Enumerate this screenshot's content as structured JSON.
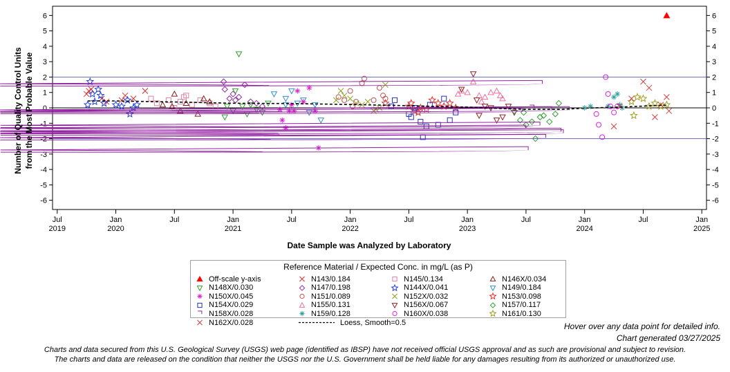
{
  "chart_data": {
    "type": "scatter",
    "title": "",
    "xlabel": "Date Sample was Analyzed by Laboratory",
    "ylabel_line1": "Number of Quality Control Units",
    "ylabel_line2": "from the Most Probable Value",
    "ylim": [
      -6.6,
      6.6
    ],
    "xlim": [
      2019.46,
      2025.04
    ],
    "y_ticks": [
      "6",
      "5",
      "4",
      "3",
      "2",
      "1",
      "0",
      "-1",
      "-2",
      "-3",
      "-4",
      "-5",
      "-6"
    ],
    "x_ticks": [
      {
        "label": "Jul",
        "year": "2019",
        "x": 2019.5
      },
      {
        "label": "Jan",
        "year": "2020",
        "x": 2020.0
      },
      {
        "label": "Jul",
        "year": "",
        "x": 2020.5
      },
      {
        "label": "Jan",
        "year": "2021",
        "x": 2021.0
      },
      {
        "label": "Jul",
        "year": "",
        "x": 2021.5
      },
      {
        "label": "Jan",
        "year": "2022",
        "x": 2022.0
      },
      {
        "label": "Jul",
        "year": "",
        "x": 2022.5
      },
      {
        "label": "Jan",
        "year": "2023",
        "x": 2023.0
      },
      {
        "label": "Jul",
        "year": "",
        "x": 2023.5
      },
      {
        "label": "Jan",
        "year": "2024",
        "x": 2024.0
      },
      {
        "label": "Jul",
        "year": "",
        "x": 2024.5
      },
      {
        "label": "Jan",
        "year": "2025",
        "x": 2025.0
      }
    ],
    "reference_lines": [
      {
        "y": 2,
        "color": "#7070c8"
      },
      {
        "y": -2,
        "color": "#7070c8"
      },
      {
        "y": 0,
        "color": "#000000"
      }
    ],
    "legend_title": "Reference Material / Expected Conc. in mg/L (as P)",
    "series": [
      {
        "name": "Off-scale y-axis",
        "marker": "triangle-filled",
        "color": "#ff0000",
        "points": [
          [
            2024.7,
            6.0
          ]
        ]
      },
      {
        "name": "N143/0.184",
        "marker": "x",
        "color": "#e03030",
        "points": [
          [
            2019.77,
            1.1
          ],
          [
            2019.79,
            1.2
          ],
          [
            2019.75,
            0.9
          ],
          [
            2019.92,
            0.4
          ],
          [
            2020.05,
            0.5
          ],
          [
            2020.08,
            0.8
          ],
          [
            2020.15,
            0.6
          ],
          [
            2020.25,
            1.1
          ],
          [
            2019.88,
            0.6
          ]
        ]
      },
      {
        "name": "N145/0.134",
        "marker": "square",
        "color": "#e080a0",
        "points": [
          [
            2020.3,
            0.6
          ],
          [
            2020.45,
            0.5
          ],
          [
            2020.55,
            0.4
          ],
          [
            2020.6,
            0.8
          ],
          [
            2020.65,
            0.2
          ],
          [
            2020.72,
            0.5
          ],
          [
            2020.8,
            0.3
          ],
          [
            2020.35,
            0.3
          ],
          [
            2020.5,
            0.0
          ],
          [
            2020.58,
            0.7
          ],
          [
            2020.85,
            0.1
          ]
        ]
      },
      {
        "name": "N146X/0.034",
        "marker": "triangle",
        "color": "#802020",
        "points": [
          [
            2020.5,
            0.9
          ],
          [
            2020.55,
            -0.2
          ],
          [
            2020.6,
            0.3
          ],
          [
            2020.7,
            -0.4
          ],
          [
            2020.75,
            0.6
          ],
          [
            2020.8,
            0.4
          ],
          [
            2020.4,
            0.2
          ],
          [
            2020.48,
            0.1
          ]
        ]
      },
      {
        "name": "N148X/0.030",
        "marker": "triangle-down",
        "color": "#30a030",
        "points": [
          [
            2020.93,
            -0.6
          ],
          [
            2021.0,
            -0.2
          ],
          [
            2021.05,
            3.5
          ],
          [
            2021.08,
            0.1
          ],
          [
            2021.12,
            -0.4
          ],
          [
            2021.15,
            0.2
          ],
          [
            2021.2,
            -0.1
          ],
          [
            2021.25,
            -0.3
          ],
          [
            2021.3,
            0.3
          ],
          [
            2020.95,
            0.1
          ],
          [
            2021.02,
            1.1
          ]
        ]
      },
      {
        "name": "N147/0.198",
        "marker": "diamond",
        "color": "#9030a0",
        "points": [
          [
            2020.92,
            1.7
          ],
          [
            2020.93,
            1.2
          ],
          [
            2020.97,
            0.6
          ],
          [
            2021.0,
            0.9
          ],
          [
            2021.05,
            0.7
          ],
          [
            2021.1,
            1.5
          ],
          [
            2021.15,
            0.4
          ],
          [
            2021.2,
            0.3
          ],
          [
            2021.25,
            0.1
          ],
          [
            2021.02,
            0.5
          ]
        ]
      },
      {
        "name": "N144X/0.041",
        "marker": "star",
        "color": "#2040e0",
        "points": [
          [
            2019.76,
            0.2
          ],
          [
            2019.78,
            1.7
          ],
          [
            2019.8,
            0.9
          ],
          [
            2019.82,
            0.4
          ],
          [
            2019.85,
            1.2
          ],
          [
            2019.87,
            0.8
          ],
          [
            2019.9,
            0.3
          ],
          [
            2020.0,
            0.2
          ],
          [
            2020.05,
            0.1
          ],
          [
            2020.1,
            0.5
          ],
          [
            2020.12,
            -0.4
          ],
          [
            2020.15,
            0.0
          ],
          [
            2020.18,
            0.2
          ]
        ]
      },
      {
        "name": "N149/0.184",
        "marker": "triangle-down-open",
        "color": "#3090d0",
        "points": [
          [
            2021.35,
            0.9
          ],
          [
            2021.45,
            0.6
          ],
          [
            2021.5,
            1.1
          ],
          [
            2021.55,
            0.3
          ],
          [
            2021.6,
            0.5
          ],
          [
            2021.65,
            -0.3
          ],
          [
            2021.7,
            0.2
          ],
          [
            2021.75,
            -0.8
          ],
          [
            2021.45,
            0.2
          ]
        ]
      },
      {
        "name": "N150X/0.045",
        "marker": "asterisk",
        "color": "#e020d0",
        "points": [
          [
            2021.4,
            -0.1
          ],
          [
            2021.42,
            -0.8
          ],
          [
            2021.45,
            -1.3
          ],
          [
            2021.5,
            0.2
          ],
          [
            2021.55,
            1.1
          ],
          [
            2021.6,
            0.4
          ],
          [
            2021.65,
            1.3
          ],
          [
            2021.7,
            -0.2
          ],
          [
            2021.73,
            -2.6
          ],
          [
            2021.48,
            -0.2
          ],
          [
            2021.52,
            -0.2
          ]
        ]
      },
      {
        "name": "N151/0.089",
        "marker": "circle",
        "color": "#c05050",
        "points": [
          [
            2021.9,
            0.7
          ],
          [
            2021.95,
            0.5
          ],
          [
            2022.0,
            1.1
          ],
          [
            2022.05,
            0.4
          ],
          [
            2022.1,
            1.6
          ],
          [
            2022.12,
            1.9
          ],
          [
            2022.2,
            0.5
          ],
          [
            2022.25,
            1.3
          ],
          [
            2022.28,
            0.8
          ],
          [
            2022.3,
            0.6
          ],
          [
            2022.02,
            0.1
          ]
        ]
      },
      {
        "name": "N152X/0.032",
        "marker": "x",
        "color": "#90a020",
        "points": [
          [
            2021.88,
            0.5
          ],
          [
            2021.92,
            1.1
          ],
          [
            2021.95,
            0.8
          ],
          [
            2022.0,
            0.6
          ],
          [
            2022.05,
            0.3
          ],
          [
            2022.1,
            0.2
          ],
          [
            2022.15,
            0.4
          ],
          [
            2022.2,
            -0.2
          ],
          [
            2022.25,
            0.0
          ],
          [
            2022.3,
            1.5
          ],
          [
            2022.22,
            -0.1
          ]
        ]
      },
      {
        "name": "N153/0.098",
        "marker": "star",
        "color": "#e03030",
        "points": [
          [
            2022.3,
            0.3
          ],
          [
            2022.5,
            0.1
          ],
          [
            2022.52,
            0.3
          ],
          [
            2022.55,
            -0.2
          ],
          [
            2022.58,
            -0.3
          ],
          [
            2022.6,
            0.0
          ],
          [
            2022.65,
            -0.1
          ],
          [
            2022.7,
            0.5
          ],
          [
            2022.75,
            0.3
          ],
          [
            2022.8,
            0.1
          ],
          [
            2022.85,
            0.3
          ],
          [
            2022.9,
            0.0
          ]
        ]
      },
      {
        "name": "N154X/0.029",
        "marker": "square",
        "color": "#2030c0",
        "points": [
          [
            2022.35,
            0.1
          ],
          [
            2022.38,
            0.5
          ],
          [
            2022.5,
            -0.4
          ],
          [
            2022.52,
            -0.6
          ],
          [
            2022.55,
            0.0
          ],
          [
            2022.6,
            -0.9
          ],
          [
            2022.62,
            -1.9
          ],
          [
            2022.65,
            -1.2
          ],
          [
            2022.68,
            0.2
          ],
          [
            2022.75,
            -1.1
          ],
          [
            2022.8,
            0.6
          ],
          [
            2022.85,
            -0.8
          ],
          [
            2022.9,
            -0.3
          ]
        ]
      },
      {
        "name": "N155/0.131",
        "marker": "triangle",
        "color": "#f070a0",
        "points": [
          [
            2022.92,
            0.9
          ],
          [
            2022.95,
            1.1
          ],
          [
            2023.0,
            1.0
          ],
          [
            2023.05,
            1.7
          ],
          [
            2023.1,
            0.8
          ],
          [
            2023.15,
            0.7
          ],
          [
            2023.2,
            1.0
          ],
          [
            2023.25,
            1.1
          ],
          [
            2023.28,
            0.8
          ],
          [
            2023.3,
            0.6
          ],
          [
            2023.12,
            0.4
          ]
        ]
      },
      {
        "name": "N156X/0.067",
        "marker": "triangle-down",
        "color": "#902020",
        "points": [
          [
            2022.95,
            1.2
          ],
          [
            2023.05,
            2.2
          ],
          [
            2023.08,
            0.5
          ],
          [
            2023.1,
            -0.5
          ],
          [
            2023.15,
            0.1
          ],
          [
            2023.25,
            -0.8
          ],
          [
            2023.3,
            -0.6
          ],
          [
            2023.35,
            0.1
          ],
          [
            2023.4,
            -0.3
          ],
          [
            2023.2,
            0.0
          ]
        ]
      },
      {
        "name": "N157/0.117",
        "marker": "diamond",
        "color": "#30a030",
        "points": [
          [
            2023.4,
            -0.2
          ],
          [
            2023.45,
            -0.8
          ],
          [
            2023.5,
            -1.1
          ],
          [
            2023.55,
            -0.9
          ],
          [
            2023.58,
            -2.0
          ],
          [
            2023.62,
            -0.6
          ],
          [
            2023.65,
            -0.5
          ],
          [
            2023.7,
            -0.9
          ],
          [
            2023.75,
            -0.4
          ],
          [
            2023.78,
            0.3
          ],
          [
            2023.48,
            -0.3
          ]
        ]
      },
      {
        "name": "N158X/0.028",
        "marker": "shield",
        "color": "#9020a0",
        "points": [
          [
            2023.45,
            -0.2
          ],
          [
            2023.48,
            -1.3
          ],
          [
            2023.5,
            -2.7
          ],
          [
            2023.55,
            0.0
          ],
          [
            2023.6,
            -1.1
          ],
          [
            2023.62,
            1.6
          ],
          [
            2023.65,
            -1.9
          ],
          [
            2023.7,
            -0.1
          ],
          [
            2023.78,
            -1.5
          ],
          [
            2023.8,
            -1.6
          ],
          [
            2023.85,
            -0.1
          ]
        ]
      },
      {
        "name": "N159/0.128",
        "marker": "asterisk",
        "color": "#30a0a0",
        "points": [
          [
            2024.0,
            0.0
          ],
          [
            2024.05,
            0.1
          ],
          [
            2024.2,
            0.1
          ],
          [
            2024.25,
            0.7
          ],
          [
            2024.28,
            0.9
          ],
          [
            2024.3,
            0.2
          ],
          [
            2024.32,
            0.0
          ]
        ]
      },
      {
        "name": "N160X/0.038",
        "marker": "circle",
        "color": "#e020e0",
        "points": [
          [
            2024.1,
            -0.4
          ],
          [
            2024.12,
            -1.1
          ],
          [
            2024.15,
            -1.9
          ],
          [
            2024.18,
            2.0
          ],
          [
            2024.2,
            0.9
          ],
          [
            2024.22,
            0.1
          ],
          [
            2024.25,
            -0.3
          ],
          [
            2024.28,
            0.1
          ]
        ]
      },
      {
        "name": "N161/0.130",
        "marker": "star",
        "color": "#a0a020",
        "points": [
          [
            2024.4,
            0.4
          ],
          [
            2024.45,
            0.7
          ],
          [
            2024.5,
            0.6
          ],
          [
            2024.55,
            0.1
          ],
          [
            2024.6,
            0.3
          ],
          [
            2024.65,
            0.1
          ],
          [
            2024.7,
            0.2
          ],
          [
            2024.42,
            -0.5
          ]
        ]
      },
      {
        "name": "N162X/0.028",
        "marker": "x",
        "color": "#d04040",
        "points": [
          [
            2024.25,
            -1.2
          ],
          [
            2024.3,
            0.1
          ],
          [
            2024.4,
            0.6
          ],
          [
            2024.5,
            1.7
          ],
          [
            2024.55,
            1.3
          ],
          [
            2024.6,
            -0.6
          ],
          [
            2024.65,
            0.2
          ],
          [
            2024.7,
            0.7
          ],
          [
            2024.72,
            -0.2
          ]
        ]
      }
    ],
    "loess": {
      "name": "Loess, Smooth=0.5",
      "points": [
        [
          2019.76,
          0.45
        ],
        [
          2020.0,
          0.45
        ],
        [
          2020.5,
          0.38
        ],
        [
          2021.0,
          0.3
        ],
        [
          2021.5,
          0.28
        ],
        [
          2022.0,
          0.22
        ],
        [
          2022.5,
          0.14
        ],
        [
          2023.0,
          0.05
        ],
        [
          2023.3,
          -0.05
        ],
        [
          2023.5,
          -0.1
        ],
        [
          2023.8,
          -0.1
        ],
        [
          2024.0,
          -0.02
        ],
        [
          2024.3,
          0.05
        ],
        [
          2024.7,
          0.18
        ]
      ]
    }
  },
  "notes": {
    "hover": "Hover over any data point for detailed info.",
    "generated": "Chart generated 03/27/2025",
    "disclaimer_line1": "Charts and data secured from this U.S. Geological Survey (USGS) web page (identified as IBSP) have not received official USGS approval and as such are provisional and subject to revision.",
    "disclaimer_line2": "The charts and data are released on the condition that neither the USGS nor the U.S. Government shall be held liable for any damages resulting from its authorized or unauthorized use."
  }
}
